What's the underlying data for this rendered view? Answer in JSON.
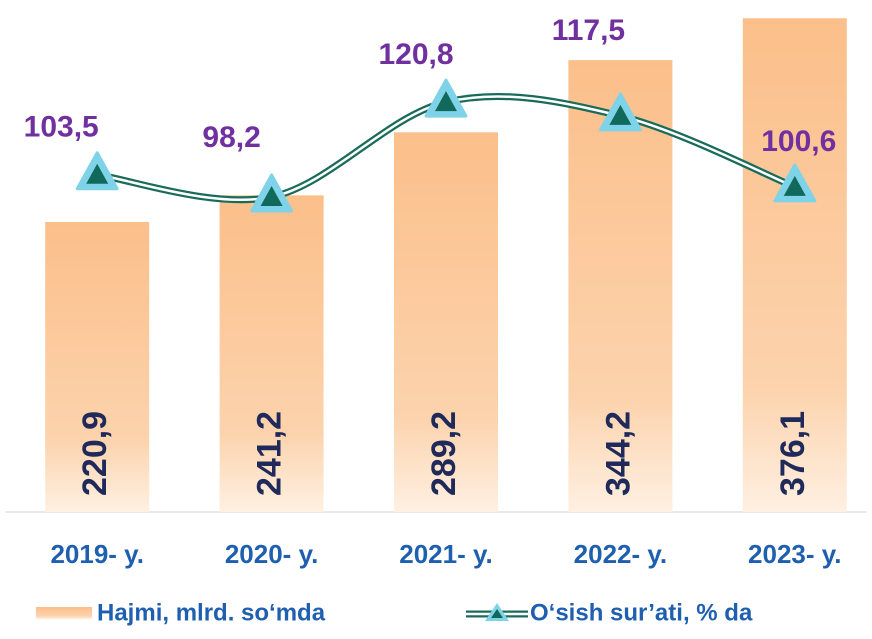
{
  "chart_data": {
    "type": "bar",
    "categories": [
      "2019- y.",
      "2020- y.",
      "2021- y.",
      "2022- y.",
      "2023- y."
    ],
    "series": [
      {
        "name": "Hajmi, mlrd. so‘mda",
        "type": "bar",
        "color": "#fbbf8a",
        "values": [
          220.9,
          241.2,
          289.2,
          344.2,
          376.1
        ],
        "value_labels": [
          "220,9",
          "241,2",
          "289,2",
          "344,2",
          "376,1"
        ]
      },
      {
        "name": "O‘sish sur’ati, % da",
        "type": "line",
        "axis": "y2",
        "color": "#1a6b5a",
        "marker_color": "#7fd3e8",
        "values": [
          103.5,
          98.2,
          120.8,
          117.5,
          100.6
        ],
        "value_labels": [
          "103,5",
          "98,2",
          "120,8",
          "117,5",
          "100,6"
        ]
      }
    ],
    "ylim": [
      0,
      390
    ],
    "y2lim": [
      23.2,
      145.1
    ]
  }
}
